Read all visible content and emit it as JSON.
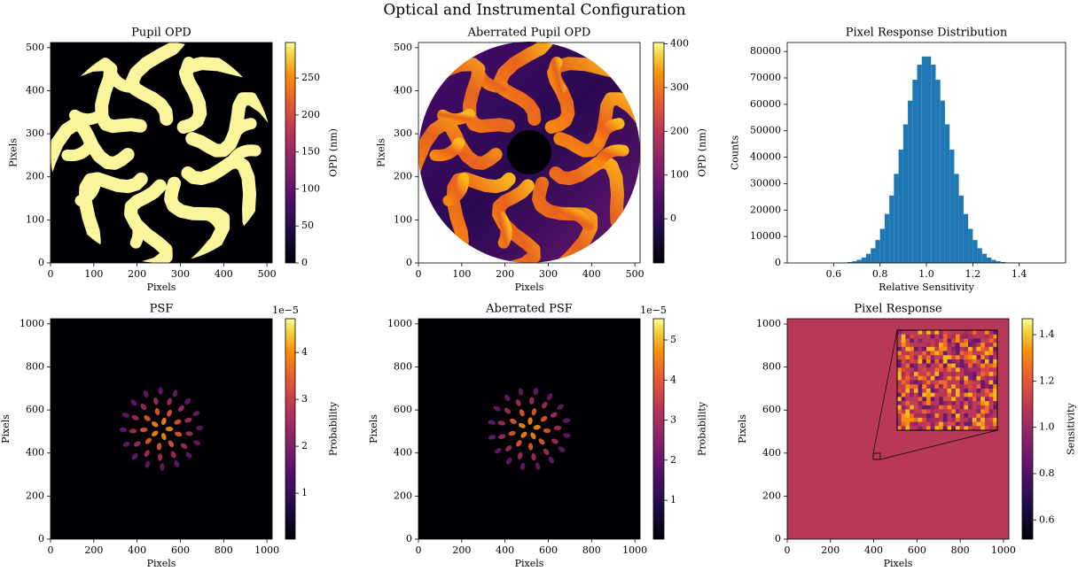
{
  "title": "Optical and Instrumental Configuration",
  "chart_data": [
    {
      "type": "heatmap",
      "title": "Pupil OPD",
      "xlabel": "Pixels",
      "ylabel": "Pixels",
      "xlim": [
        0,
        512
      ],
      "ylim": [
        0,
        512
      ],
      "xticks": [
        0,
        100,
        200,
        300,
        400,
        500
      ],
      "yticks": [
        0,
        100,
        200,
        300,
        400,
        500
      ],
      "colormap": "inferno",
      "colorbar": {
        "label": "OPD (nm)",
        "lim": [
          0,
          298
        ],
        "ticks": [
          0,
          50,
          100,
          150,
          200,
          250
        ]
      }
    },
    {
      "type": "heatmap",
      "title": "Aberrated Pupil OPD",
      "xlabel": "Pixels",
      "ylabel": "Pixels",
      "xlim": [
        0,
        512
      ],
      "ylim": [
        0,
        512
      ],
      "xticks": [
        0,
        100,
        200,
        300,
        400,
        500
      ],
      "yticks": [
        0,
        100,
        200,
        300,
        400,
        500
      ],
      "colormap": "inferno",
      "colorbar": {
        "label": "OPD (nm)",
        "lim": [
          -101,
          403
        ],
        "ticks": [
          0,
          100,
          200,
          300,
          400
        ]
      }
    },
    {
      "type": "histogram",
      "title": "Pixel Response Distribution",
      "xlabel": "Relative Sensitivity",
      "ylabel": "Counts",
      "color": "#1f77b4",
      "xlim": [
        0.4,
        1.6
      ],
      "ylim": [
        0,
        83400
      ],
      "xticks": [
        0.6,
        0.8,
        {
          "value": 1,
          "label": "1.0"
        },
        1.2,
        1.4
      ],
      "yticks": [
        0,
        10000,
        20000,
        30000,
        40000,
        50000,
        60000,
        70000,
        80000
      ],
      "bins": [
        0.5,
        0.52,
        0.54,
        0.56,
        0.58,
        0.6,
        0.62,
        0.64,
        0.66,
        0.68,
        0.7,
        0.72,
        0.74,
        0.76,
        0.78,
        0.8,
        0.82,
        0.84,
        0.86,
        0.88,
        0.9,
        0.92,
        0.94,
        0.96,
        0.98,
        1.0,
        1.02,
        1.04,
        1.06,
        1.08,
        1.1,
        1.12,
        1.14,
        1.16,
        1.18,
        1.2,
        1.22,
        1.24,
        1.26,
        1.28,
        1.3,
        1.32,
        1.34,
        1.36,
        1.38,
        1.4,
        1.42,
        1.44,
        1.46,
        1.48,
        1.5
      ],
      "counts": [
        0,
        1,
        3,
        8,
        18,
        39,
        83,
        170,
        340,
        640,
        1170,
        2050,
        3450,
        5570,
        8660,
        12900,
        18500,
        25500,
        33700,
        42900,
        52400,
        61400,
        69300,
        75000,
        78100,
        78100,
        75000,
        69300,
        61400,
        52400,
        42900,
        33700,
        25500,
        18500,
        12900,
        8660,
        5570,
        3450,
        2050,
        1170,
        640,
        340,
        170,
        83,
        39,
        18,
        8,
        3,
        1,
        0
      ]
    },
    {
      "type": "heatmap",
      "title": "PSF",
      "xlabel": "Pixels",
      "ylabel": "Pixels",
      "xlim": [
        0,
        1024
      ],
      "ylim": [
        0,
        1024
      ],
      "xticks": [
        0,
        200,
        400,
        600,
        800,
        1000
      ],
      "yticks": [
        0,
        200,
        400,
        600,
        800,
        1000
      ],
      "colormap": "inferno",
      "colorbar": {
        "label": "Probability",
        "lim": [
          0.02,
          4.72
        ],
        "ticks": [
          1,
          2,
          3,
          4
        ],
        "offset": "1e−5"
      }
    },
    {
      "type": "heatmap",
      "title": "Aberrated PSF",
      "xlabel": "Pixels",
      "ylabel": "Pixels",
      "xlim": [
        0,
        1024
      ],
      "ylim": [
        0,
        1024
      ],
      "xticks": [
        0,
        200,
        400,
        600,
        800,
        1000
      ],
      "yticks": [
        0,
        200,
        400,
        600,
        800,
        1000
      ],
      "colormap": "inferno",
      "colorbar": {
        "label": "Probability",
        "lim": [
          0.03,
          5.53
        ],
        "ticks": [
          1,
          2,
          3,
          4,
          5
        ],
        "offset": "1e−5"
      }
    },
    {
      "type": "heatmap",
      "title": "Pixel Response",
      "xlabel": "Pixels",
      "ylabel": "Pixels",
      "xlim": [
        0,
        1025
      ],
      "ylim": [
        0,
        1025
      ],
      "xticks": [
        0,
        200,
        400,
        600,
        800,
        1000
      ],
      "yticks": [
        0,
        200,
        400,
        600,
        800,
        1000
      ],
      "colormap": "inferno",
      "colorbar": {
        "label": "Sensitivity",
        "lim": [
          0.517,
          1.469
        ],
        "ticks": [
          0.6,
          0.8,
          {
            "value": 1,
            "label": "1.0"
          },
          1.2,
          1.4
        ]
      }
    }
  ]
}
